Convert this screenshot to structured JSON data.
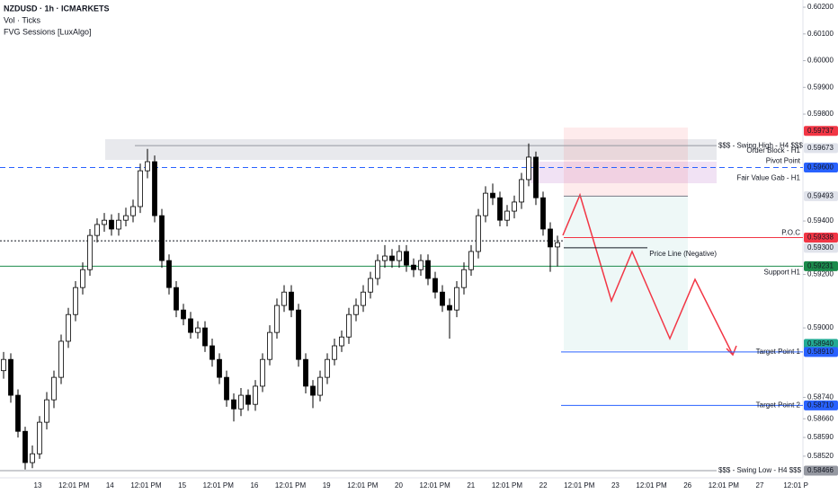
{
  "chart_data": {
    "type": "candlestick",
    "title": "NZDUSD · 1h · ICMARKETS",
    "subtitles": [
      "Vol · Ticks",
      "FVG Sessions [LuxAlgo]"
    ],
    "open": [
      0.5884,
      0.58882,
      0.58748,
      0.58613,
      0.58496,
      0.58529,
      0.58647,
      0.58731,
      0.58815,
      0.5895,
      0.5905,
      0.59151,
      0.59218,
      0.59346,
      0.59387,
      0.59403,
      0.5937,
      0.59403,
      0.5942,
      0.59454,
      0.59588,
      0.59622,
      0.5942,
      0.59252,
      0.59151,
      0.59067,
      0.59034,
      0.58983,
      0.59,
      0.58933,
      0.58882,
      0.58815,
      0.58731,
      0.58697,
      0.58748,
      0.58714,
      0.58782,
      0.58882,
      0.58983,
      0.59084,
      0.59134,
      0.59067,
      0.58882,
      0.58782,
      0.58748,
      0.58815,
      0.58882,
      0.58933,
      0.58966,
      0.5905,
      0.59084,
      0.59134,
      0.59185,
      0.59252,
      0.59269,
      0.59252,
      0.59286,
      0.59235,
      0.59218,
      0.59252,
      0.59185,
      0.59134,
      0.59084,
      0.59067,
      0.59151,
      0.59218,
      0.59286,
      0.5942,
      0.59504,
      0.59487,
      0.59403,
      0.59437,
      0.59471,
      0.59555,
      0.59639,
      0.59487,
      0.5937,
      0.59303
    ],
    "high": [
      0.5891,
      0.58905,
      0.5877,
      0.5863,
      0.5856,
      0.5867,
      0.5876,
      0.5884,
      0.58975,
      0.59075,
      0.59175,
      0.59245,
      0.5937,
      0.5941,
      0.5943,
      0.59425,
      0.5943,
      0.5945,
      0.5948,
      0.59615,
      0.5967,
      0.59645,
      0.59445,
      0.59275,
      0.59175,
      0.5909,
      0.5906,
      0.59025,
      0.59025,
      0.5896,
      0.58905,
      0.5884,
      0.58755,
      0.58775,
      0.5877,
      0.58805,
      0.58905,
      0.5901,
      0.5911,
      0.5916,
      0.5916,
      0.5909,
      0.58905,
      0.58805,
      0.5884,
      0.58905,
      0.5896,
      0.5899,
      0.59075,
      0.5911,
      0.5916,
      0.5921,
      0.59275,
      0.5931,
      0.59295,
      0.5931,
      0.5931,
      0.5926,
      0.59275,
      0.59275,
      0.5921,
      0.5916,
      0.5911,
      0.59175,
      0.59245,
      0.5931,
      0.59445,
      0.5953,
      0.5954,
      0.5951,
      0.5946,
      0.59495,
      0.5958,
      0.5969,
      0.5966,
      0.5951,
      0.59395,
      0.59345
    ],
    "low": [
      0.5881,
      0.5872,
      0.5859,
      0.5847,
      0.58475,
      0.5851,
      0.5862,
      0.587,
      0.5879,
      0.58925,
      0.59025,
      0.59125,
      0.59195,
      0.5932,
      0.5936,
      0.59345,
      0.59345,
      0.5938,
      0.59395,
      0.5943,
      0.5956,
      0.59395,
      0.59225,
      0.59125,
      0.5904,
      0.5901,
      0.5896,
      0.5896,
      0.5891,
      0.58855,
      0.5879,
      0.58705,
      0.5865,
      0.5867,
      0.5869,
      0.5869,
      0.5876,
      0.5886,
      0.5896,
      0.5906,
      0.5904,
      0.58855,
      0.58755,
      0.587,
      0.58725,
      0.5879,
      0.5886,
      0.5891,
      0.5894,
      0.59025,
      0.5906,
      0.5911,
      0.5916,
      0.59225,
      0.59225,
      0.59225,
      0.5921,
      0.5919,
      0.59195,
      0.5916,
      0.5911,
      0.5906,
      0.5896,
      0.5904,
      0.59125,
      0.59195,
      0.5926,
      0.59395,
      0.5946,
      0.5938,
      0.5938,
      0.5941,
      0.59445,
      0.5953,
      0.5946,
      0.59345,
      0.5921,
      0.5923
    ],
    "close": [
      0.58882,
      0.58748,
      0.58613,
      0.58496,
      0.58529,
      0.58647,
      0.58731,
      0.58815,
      0.5895,
      0.5905,
      0.59151,
      0.59218,
      0.59346,
      0.59387,
      0.59403,
      0.5937,
      0.59403,
      0.5942,
      0.59454,
      0.59588,
      0.59622,
      0.5942,
      0.59252,
      0.59151,
      0.59067,
      0.59034,
      0.58983,
      0.59,
      0.58933,
      0.58882,
      0.58815,
      0.58731,
      0.58697,
      0.58748,
      0.58714,
      0.58782,
      0.58882,
      0.58983,
      0.59084,
      0.59134,
      0.59067,
      0.58882,
      0.58782,
      0.58748,
      0.58815,
      0.58882,
      0.58933,
      0.58966,
      0.5905,
      0.59084,
      0.59134,
      0.59185,
      0.59252,
      0.59269,
      0.59252,
      0.59286,
      0.59235,
      0.59218,
      0.59252,
      0.59185,
      0.59134,
      0.59084,
      0.59067,
      0.59151,
      0.59218,
      0.59286,
      0.5942,
      0.59504,
      0.59487,
      0.59403,
      0.59437,
      0.59471,
      0.59555,
      0.59639,
      0.59487,
      0.5937,
      0.59303,
      0.59319
    ],
    "categories": [
      "13",
      "12:01 PM",
      "14",
      "12:01 PM",
      "15",
      "12:01 PM",
      "16",
      "12:01 PM",
      "19",
      "12:01 PM",
      "20",
      "12:01 PM",
      "21",
      "12:01 PM",
      "22",
      "12:01 PM",
      "23",
      "12:01 PM",
      "26",
      "12:01 PM",
      "27",
      "12:01 P"
    ],
    "ylim": [
      0.58439,
      0.60227
    ],
    "yticks": [
      {
        "value": 0.602,
        "label": "0.60200"
      },
      {
        "value": 0.601,
        "label": "0.60100"
      },
      {
        "value": 0.6,
        "label": "0.60000"
      },
      {
        "value": 0.599,
        "label": "0.59900"
      },
      {
        "value": 0.598,
        "label": "0.59800"
      },
      {
        "value": 0.594,
        "label": "0.59400"
      },
      {
        "value": 0.592,
        "label": "0.59200"
      },
      {
        "value": 0.59,
        "label": "0.59000"
      },
      {
        "value": 0.5874,
        "label": "0.58740"
      },
      {
        "value": 0.5866,
        "label": "0.58660"
      },
      {
        "value": 0.5859,
        "label": "0.58590"
      },
      {
        "value": 0.5852,
        "label": "0.58520"
      }
    ],
    "grid": false,
    "up_color": "#ffffff",
    "down_color": "#000000",
    "levels": [
      {
        "value": 0.59737,
        "label": "0.59737",
        "color": "#f23645"
      },
      {
        "value": 0.59682,
        "text": "$$$ - Swing High - H4 $$$",
        "color": "#9598a1"
      },
      {
        "value": 0.59673,
        "label": "0.59673",
        "text": "Order Block - H1",
        "color": "#787b86"
      },
      {
        "value": 0.596,
        "label": "0.59600",
        "text": "Pivot Point",
        "color": "#2962ff"
      },
      {
        "value": 0.5956,
        "text": "Fair Value Gab - H1",
        "color": "#9c27b0"
      },
      {
        "value": 0.59493,
        "label": "0.59493",
        "color": "#787b86"
      },
      {
        "value": 0.59338,
        "label": "0.59338",
        "text": "P.O.C",
        "color": "#f23645"
      },
      {
        "value": 0.59326,
        "color": "#131722"
      },
      {
        "value": 0.593,
        "label": "0.59300",
        "text": "Price Line (Negative)",
        "color": "#131722"
      },
      {
        "value": 0.59231,
        "label": "0.59231",
        "text": "Support H1",
        "color": "#1b8b4b"
      },
      {
        "value": 0.5894,
        "label": "0.58940",
        "color": "#22ab94"
      },
      {
        "value": 0.5891,
        "label": "0.58910",
        "text": "Target Point 1",
        "color": "#2962ff"
      },
      {
        "value": 0.5871,
        "label": "0.58710",
        "text": "Target Point 2",
        "color": "#2962ff"
      },
      {
        "value": 0.58466,
        "label": "0.58466",
        "text": "$$$ - Swing Low - H4 $$$",
        "color": "#9598a1"
      }
    ]
  }
}
